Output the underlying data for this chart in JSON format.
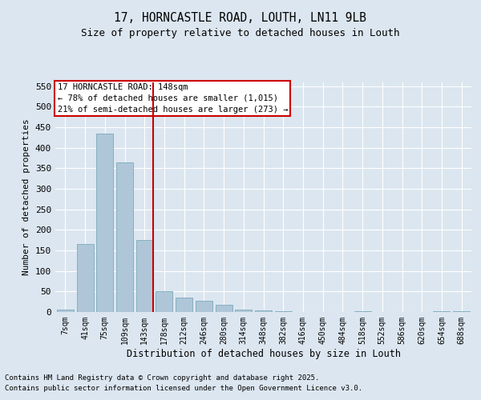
{
  "title1": "17, HORNCASTLE ROAD, LOUTH, LN11 9LB",
  "title2": "Size of property relative to detached houses in Louth",
  "xlabel": "Distribution of detached houses by size in Louth",
  "ylabel": "Number of detached properties",
  "bin_labels": [
    "7sqm",
    "41sqm",
    "75sqm",
    "109sqm",
    "143sqm",
    "178sqm",
    "212sqm",
    "246sqm",
    "280sqm",
    "314sqm",
    "348sqm",
    "382sqm",
    "416sqm",
    "450sqm",
    "484sqm",
    "518sqm",
    "552sqm",
    "586sqm",
    "620sqm",
    "654sqm",
    "688sqm"
  ],
  "bar_values": [
    5,
    165,
    435,
    365,
    175,
    50,
    35,
    28,
    17,
    5,
    3,
    1,
    0,
    0,
    0,
    1,
    0,
    0,
    0,
    1,
    1
  ],
  "bar_color": "#aec6d8",
  "bar_edge_color": "#7aaabb",
  "vline_color": "#cc0000",
  "annotation_border_color": "#cc0000",
  "ylim": [
    0,
    560
  ],
  "yticks": [
    0,
    50,
    100,
    150,
    200,
    250,
    300,
    350,
    400,
    450,
    500,
    550
  ],
  "property_label": "17 HORNCASTLE ROAD: 148sqm",
  "annotation_line1": "← 78% of detached houses are smaller (1,015)",
  "annotation_line2": "21% of semi-detached houses are larger (273) →",
  "footnote1": "Contains HM Land Registry data © Crown copyright and database right 2025.",
  "footnote2": "Contains public sector information licensed under the Open Government Licence v3.0.",
  "bg_color": "#dce6f0",
  "plot_bg_color": "#dce6f0"
}
